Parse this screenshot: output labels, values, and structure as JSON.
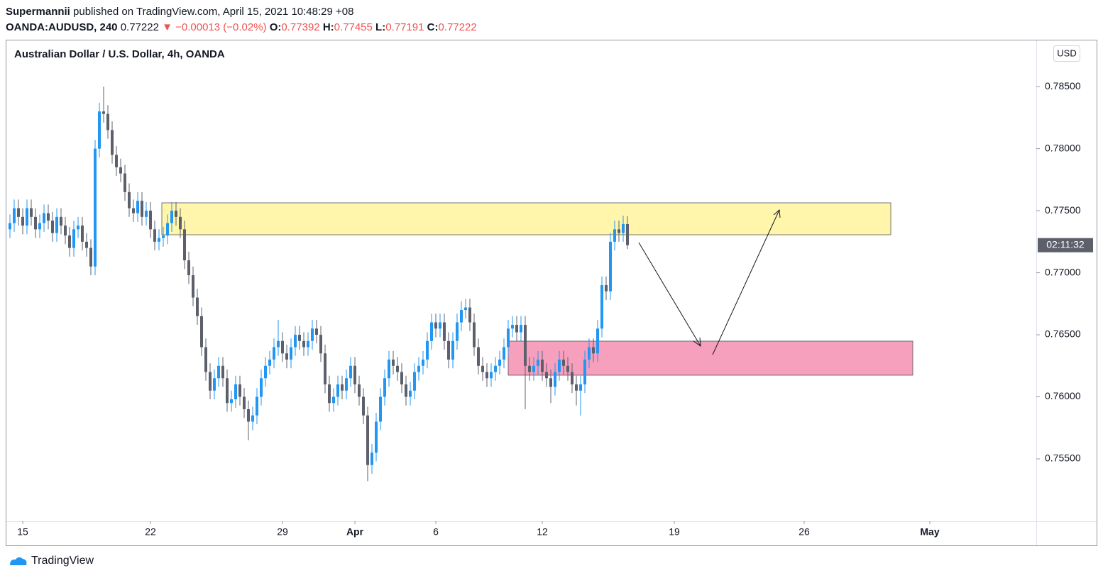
{
  "header": {
    "publisher": "Supermannii",
    "published": "published on TradingView.com, April 15, 2021 10:48:29 +08",
    "symbol": "OANDA:AUDUSD, 240",
    "change": "▼ −0.00013 (−0.02%)",
    "o": "O:",
    "h": "H:",
    "l": "L:",
    "c": "C:"
  },
  "footer": {
    "brand": "TradingView"
  },
  "chart_data": {
    "type": "candlestick",
    "title": "Australian Dollar / U.S. Dollar, 4h, OANDA",
    "currency": "USD",
    "countdown": "02:11:32",
    "up_color": "#2196f3",
    "down_color": "#5d606b",
    "xlim": [
      -1,
      241
    ],
    "ylim": [
      0.74997,
      0.78878
    ],
    "yticks": [
      {
        "value": 0.755,
        "label": "0.75500"
      },
      {
        "value": 0.76,
        "label": "0.76000"
      },
      {
        "value": 0.765,
        "label": "0.76500"
      },
      {
        "value": 0.77,
        "label": "0.77000"
      },
      {
        "value": 0.775,
        "label": "0.77500"
      },
      {
        "value": 0.78,
        "label": "0.78000"
      },
      {
        "value": 0.785,
        "label": "0.78500"
      }
    ],
    "xticks": [
      {
        "value": 3,
        "label": "15"
      },
      {
        "value": 33,
        "label": "22"
      },
      {
        "value": 64,
        "label": "29"
      },
      {
        "value": 81,
        "label": "Apr"
      },
      {
        "value": 100,
        "label": "6"
      },
      {
        "value": 125,
        "label": "12"
      },
      {
        "value": 156,
        "label": "19"
      },
      {
        "value": 186.5,
        "label": "26"
      },
      {
        "value": 216,
        "label": "May"
      }
    ],
    "open": [
      0.7735,
      0.774,
      0.7752,
      0.7745,
      0.7738,
      0.7752,
      0.7745,
      0.7735,
      0.774,
      0.7748,
      0.7742,
      0.7732,
      0.7745,
      0.7738,
      0.773,
      0.772,
      0.7735,
      0.7738,
      0.7725,
      0.772,
      0.7705,
      0.78,
      0.783,
      0.7828,
      0.7815,
      0.7795,
      0.7785,
      0.778,
      0.7765,
      0.7752,
      0.7748,
      0.7758,
      0.7745,
      0.775,
      0.7735,
      0.7725,
      0.7728,
      0.773,
      0.774,
      0.775,
      0.7745,
      0.7735,
      0.771,
      0.7698,
      0.768,
      0.7665,
      0.764,
      0.762,
      0.7605,
      0.7615,
      0.7625,
      0.7615,
      0.7595,
      0.7598,
      0.761,
      0.76,
      0.759,
      0.758,
      0.7585,
      0.76,
      0.7615,
      0.7625,
      0.763,
      0.764,
      0.7645,
      0.7635,
      0.763,
      0.764,
      0.765,
      0.7645,
      0.764,
      0.7645,
      0.7655,
      0.765,
      0.7635,
      0.761,
      0.7595,
      0.76,
      0.761,
      0.7605,
      0.7615,
      0.7625,
      0.761,
      0.76,
      0.7585,
      0.7545,
      0.7555,
      0.758,
      0.76,
      0.7615,
      0.763,
      0.7625,
      0.762,
      0.761,
      0.76,
      0.7605,
      0.762,
      0.7625,
      0.763,
      0.7645,
      0.766,
      0.7655,
      0.766,
      0.7645,
      0.763,
      0.7645,
      0.766,
      0.767,
      0.7672,
      0.766,
      0.764,
      0.7625,
      0.762,
      0.7615,
      0.762,
      0.7625,
      0.763,
      0.764,
      0.7655,
      0.7658,
      0.7652,
      0.7658,
      0.7625,
      0.762,
      0.7625,
      0.763,
      0.762,
      0.7615,
      0.7608,
      0.762,
      0.763,
      0.7625,
      0.762,
      0.761,
      0.7605,
      0.761,
      0.763,
      0.764,
      0.7635,
      0.7655,
      0.769,
      0.7685,
      0.7725,
      0.7735,
      0.7732,
      0.77392
    ],
    "high": [
      0.7747,
      0.7759,
      0.7759,
      0.7752,
      0.7759,
      0.7759,
      0.7752,
      0.7747,
      0.7755,
      0.7755,
      0.7749,
      0.7752,
      0.7752,
      0.7745,
      0.7737,
      0.7742,
      0.7745,
      0.7745,
      0.7732,
      0.7727,
      0.7807,
      0.7837,
      0.785,
      0.7835,
      0.7822,
      0.7802,
      0.7792,
      0.7787,
      0.7772,
      0.7759,
      0.7765,
      0.7765,
      0.7757,
      0.7757,
      0.7742,
      0.7735,
      0.7737,
      0.7747,
      0.7757,
      0.7757,
      0.7752,
      0.7742,
      0.7717,
      0.7705,
      0.7687,
      0.7672,
      0.7647,
      0.7627,
      0.7622,
      0.7632,
      0.7632,
      0.7622,
      0.7605,
      0.7617,
      0.7617,
      0.7607,
      0.7597,
      0.7592,
      0.7607,
      0.7622,
      0.7632,
      0.7637,
      0.7647,
      0.7662,
      0.7652,
      0.7642,
      0.7647,
      0.7657,
      0.7657,
      0.7652,
      0.7652,
      0.7662,
      0.7662,
      0.7657,
      0.7642,
      0.7617,
      0.7607,
      0.7617,
      0.7617,
      0.7622,
      0.7632,
      0.7632,
      0.7617,
      0.7607,
      0.7592,
      0.7562,
      0.7587,
      0.7607,
      0.7622,
      0.7637,
      0.7637,
      0.7632,
      0.7627,
      0.7617,
      0.7612,
      0.7627,
      0.7632,
      0.7637,
      0.7652,
      0.7667,
      0.7667,
      0.7667,
      0.7667,
      0.7652,
      0.7652,
      0.7667,
      0.7677,
      0.7679,
      0.7679,
      0.7667,
      0.7647,
      0.7632,
      0.7627,
      0.7627,
      0.7632,
      0.7637,
      0.7647,
      0.7662,
      0.7665,
      0.7665,
      0.7665,
      0.7665,
      0.7632,
      0.7632,
      0.7637,
      0.7637,
      0.7627,
      0.7622,
      0.7627,
      0.7637,
      0.7637,
      0.7632,
      0.7627,
      0.7617,
      0.7617,
      0.7637,
      0.7647,
      0.7647,
      0.7662,
      0.7697,
      0.7697,
      0.7732,
      0.7742,
      0.7742,
      0.7746,
      0.77455
    ],
    "low": [
      0.7728,
      0.7733,
      0.7738,
      0.7731,
      0.7731,
      0.7738,
      0.7728,
      0.7728,
      0.7733,
      0.7735,
      0.7725,
      0.7725,
      0.7731,
      0.7723,
      0.7713,
      0.7713,
      0.7728,
      0.7718,
      0.7713,
      0.7698,
      0.7698,
      0.7793,
      0.7821,
      0.7808,
      0.7788,
      0.7778,
      0.7773,
      0.7758,
      0.7745,
      0.7741,
      0.7741,
      0.7738,
      0.7738,
      0.7728,
      0.7718,
      0.7718,
      0.7721,
      0.7723,
      0.7733,
      0.7738,
      0.7728,
      0.7703,
      0.7691,
      0.7673,
      0.7658,
      0.7633,
      0.7613,
      0.7598,
      0.7598,
      0.7608,
      0.7608,
      0.7588,
      0.7588,
      0.7591,
      0.7593,
      0.7583,
      0.7565,
      0.7573,
      0.7578,
      0.7593,
      0.7608,
      0.7618,
      0.7623,
      0.7633,
      0.7628,
      0.7623,
      0.7623,
      0.7633,
      0.7638,
      0.7633,
      0.7633,
      0.7638,
      0.7643,
      0.7628,
      0.7603,
      0.7588,
      0.7588,
      0.7593,
      0.7598,
      0.7598,
      0.7608,
      0.7603,
      0.7593,
      0.7578,
      0.7532,
      0.7538,
      0.7548,
      0.7573,
      0.7593,
      0.7608,
      0.7618,
      0.7613,
      0.7603,
      0.7593,
      0.7593,
      0.7598,
      0.7613,
      0.7618,
      0.7623,
      0.7638,
      0.7648,
      0.7648,
      0.7638,
      0.7623,
      0.7623,
      0.7638,
      0.7653,
      0.7663,
      0.7653,
      0.7633,
      0.7618,
      0.7613,
      0.7608,
      0.7608,
      0.7613,
      0.7618,
      0.7623,
      0.7633,
      0.7648,
      0.7645,
      0.7645,
      0.759,
      0.7613,
      0.7613,
      0.7618,
      0.7613,
      0.7608,
      0.7595,
      0.7601,
      0.7613,
      0.7618,
      0.7613,
      0.7603,
      0.7593,
      0.7585,
      0.7603,
      0.7623,
      0.7628,
      0.7628,
      0.7648,
      0.7678,
      0.7678,
      0.7718,
      0.7725,
      0.7725,
      0.77191
    ],
    "close": [
      0.774,
      0.7752,
      0.7745,
      0.7738,
      0.7752,
      0.7745,
      0.7735,
      0.774,
      0.7748,
      0.7742,
      0.7732,
      0.7745,
      0.7738,
      0.773,
      0.772,
      0.7735,
      0.7738,
      0.7725,
      0.772,
      0.7705,
      0.78,
      0.783,
      0.7828,
      0.7815,
      0.7795,
      0.7785,
      0.778,
      0.7765,
      0.7752,
      0.7748,
      0.7758,
      0.7745,
      0.775,
      0.7735,
      0.7725,
      0.7728,
      0.773,
      0.774,
      0.775,
      0.7745,
      0.7735,
      0.771,
      0.7698,
      0.768,
      0.7665,
      0.764,
      0.762,
      0.7605,
      0.7615,
      0.7625,
      0.7615,
      0.7595,
      0.7598,
      0.761,
      0.76,
      0.759,
      0.758,
      0.7585,
      0.76,
      0.7615,
      0.7625,
      0.763,
      0.764,
      0.7645,
      0.7635,
      0.763,
      0.764,
      0.765,
      0.7645,
      0.764,
      0.7645,
      0.7655,
      0.765,
      0.7635,
      0.761,
      0.7595,
      0.76,
      0.761,
      0.7605,
      0.7615,
      0.7625,
      0.761,
      0.76,
      0.7585,
      0.7545,
      0.7555,
      0.758,
      0.76,
      0.7615,
      0.763,
      0.7625,
      0.762,
      0.761,
      0.76,
      0.7605,
      0.762,
      0.7625,
      0.763,
      0.7645,
      0.766,
      0.7655,
      0.766,
      0.7645,
      0.763,
      0.7645,
      0.766,
      0.767,
      0.7672,
      0.766,
      0.764,
      0.7625,
      0.762,
      0.7615,
      0.762,
      0.7625,
      0.763,
      0.764,
      0.7655,
      0.7658,
      0.7652,
      0.7658,
      0.7625,
      0.762,
      0.7625,
      0.763,
      0.762,
      0.7615,
      0.7608,
      0.762,
      0.763,
      0.7625,
      0.762,
      0.761,
      0.7605,
      0.761,
      0.763,
      0.764,
      0.7635,
      0.7655,
      0.769,
      0.7685,
      0.7725,
      0.7735,
      0.7732,
      0.77392,
      0.77222
    ]
  }
}
